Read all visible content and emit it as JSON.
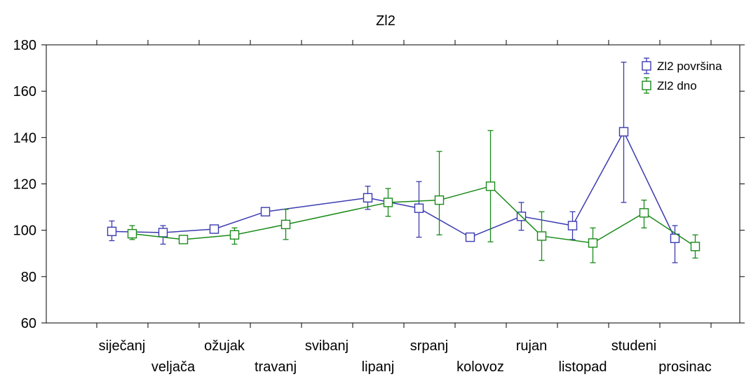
{
  "chart_data": {
    "type": "line",
    "title": "Zl2",
    "xlabel": "",
    "ylabel": "",
    "ylim": [
      60,
      180
    ],
    "yticks": [
      60,
      80,
      100,
      120,
      140,
      160,
      180
    ],
    "categories": [
      "siječanj",
      "veljača",
      "ožujak",
      "travanj",
      "svibanj",
      "lipanj",
      "srpanj",
      "kolovoz",
      "rujan",
      "listopad",
      "studeni",
      "prosinac"
    ],
    "grid": false,
    "legend_position": "top-right",
    "series": [
      {
        "name": "Zl2 površina",
        "color": "#3b3bb0",
        "points": [
          {
            "category": "siječanj",
            "value": 99.5,
            "err_low": 95.5,
            "err_high": 104
          },
          {
            "category": "veljača",
            "value": 99,
            "err_low": 94,
            "err_high": 102
          },
          {
            "category": "ožujak",
            "value": 100.5,
            "err_low": 99.5,
            "err_high": 101.5
          },
          {
            "category": "travanj",
            "value": 108,
            "err_low": 107,
            "err_high": 109
          },
          {
            "category": "lipanj",
            "value": 114,
            "err_low": 109,
            "err_high": 119
          },
          {
            "category": "srpanj",
            "value": 109.5,
            "err_low": 97,
            "err_high": 121
          },
          {
            "category": "kolovoz",
            "value": 97,
            "err_low": 96,
            "err_high": 98
          },
          {
            "category": "rujan",
            "value": 106,
            "err_low": 100,
            "err_high": 112
          },
          {
            "category": "listopad",
            "value": 102,
            "err_low": 96,
            "err_high": 108
          },
          {
            "category": "studeni",
            "value": 142.5,
            "err_low": 112,
            "err_high": 172.5
          },
          {
            "category": "prosinac",
            "value": 96.5,
            "err_low": 86,
            "err_high": 102
          }
        ]
      },
      {
        "name": "Zl2 dno",
        "color": "#1a8a1a",
        "points": [
          {
            "category": "siječanj",
            "value": 98.5,
            "err_low": 96,
            "err_high": 102
          },
          {
            "category": "veljača",
            "value": 96,
            "err_low": 95,
            "err_high": 97
          },
          {
            "category": "ožujak",
            "value": 98,
            "err_low": 94,
            "err_high": 101
          },
          {
            "category": "travanj",
            "value": 102.5,
            "err_low": 96,
            "err_high": 109
          },
          {
            "category": "lipanj",
            "value": 112,
            "err_low": 106,
            "err_high": 118
          },
          {
            "category": "srpanj",
            "value": 113,
            "err_low": 98,
            "err_high": 134
          },
          {
            "category": "kolovoz",
            "value": 119,
            "err_low": 95,
            "err_high": 143
          },
          {
            "category": "rujan",
            "value": 97.5,
            "err_low": 87,
            "err_high": 108
          },
          {
            "category": "listopad",
            "value": 94.5,
            "err_low": 86,
            "err_high": 101
          },
          {
            "category": "studeni",
            "value": 107.5,
            "err_low": 101,
            "err_high": 113
          },
          {
            "category": "prosinac",
            "value": 93,
            "err_low": 88,
            "err_high": 98
          }
        ]
      }
    ]
  }
}
